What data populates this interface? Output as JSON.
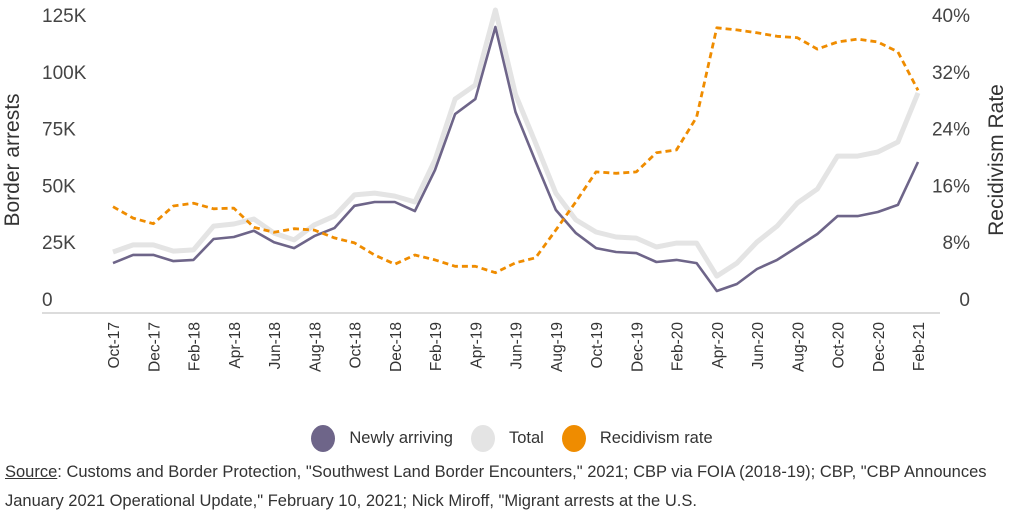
{
  "chart_data": {
    "type": "line",
    "title": "",
    "ylabel_left": "Border arrests",
    "ylabel_right": "Recidivism Rate",
    "ylim_left": [
      0,
      125000
    ],
    "ylim_right": [
      0,
      40
    ],
    "left_ticks": [
      "0",
      "25K",
      "50K",
      "75K",
      "100K",
      "125K"
    ],
    "left_tick_values": [
      0,
      25000,
      50000,
      75000,
      100000,
      125000
    ],
    "right_ticks": [
      "0",
      "8%",
      "16%",
      "24%",
      "32%",
      "40%"
    ],
    "right_tick_values": [
      0,
      8,
      16,
      24,
      32,
      40
    ],
    "grid": false,
    "legend_position": "bottom",
    "categories": [
      "Oct-17",
      "Nov-17",
      "Dec-17",
      "Jan-18",
      "Feb-18",
      "Mar-18",
      "Apr-18",
      "May-18",
      "Jun-18",
      "Jul-18",
      "Aug-18",
      "Sep-18",
      "Oct-18",
      "Nov-18",
      "Dec-18",
      "Jan-19",
      "Feb-19",
      "Mar-19",
      "Apr-19",
      "May-19",
      "Jun-19",
      "Jul-19",
      "Aug-19",
      "Sep-19",
      "Oct-19",
      "Nov-19",
      "Dec-19",
      "Jan-20",
      "Feb-20",
      "Mar-20",
      "Apr-20",
      "May-20",
      "Jun-20",
      "Jul-20",
      "Aug-20",
      "Sep-20",
      "Oct-20",
      "Nov-20",
      "Dec-20",
      "Jan-21",
      "Feb-21"
    ],
    "series": [
      {
        "name": "Newly arriving",
        "axis": "left",
        "color": "#6e6589",
        "style": "solid",
        "values": [
          15800,
          19400,
          19400,
          16700,
          17200,
          26400,
          27300,
          30000,
          25000,
          22400,
          27700,
          31200,
          41000,
          42700,
          42700,
          38700,
          56800,
          81400,
          88000,
          119700,
          82300,
          60500,
          39200,
          29000,
          22400,
          20700,
          20200,
          16300,
          17200,
          15800,
          3500,
          6600,
          13200,
          17200,
          22900,
          28600,
          36500,
          36500,
          38300,
          41400,
          60300
        ]
      },
      {
        "name": "Total",
        "axis": "left",
        "color": "#e4e4e4",
        "style": "solid",
        "values": [
          20700,
          23800,
          23800,
          21100,
          21600,
          32100,
          33000,
          35200,
          29000,
          26000,
          32600,
          36500,
          45800,
          46600,
          45300,
          42700,
          61200,
          88000,
          94200,
          127200,
          90000,
          68600,
          46600,
          34800,
          29500,
          27300,
          26800,
          22900,
          24600,
          24600,
          10100,
          15800,
          25100,
          32100,
          42200,
          48400,
          62900,
          62900,
          64700,
          69100,
          90700
        ]
      },
      {
        "name": "Recidivism rate",
        "axis": "right",
        "color": "#ef8c00",
        "style": "dashed",
        "values": [
          13.0,
          11.4,
          10.6,
          13.1,
          13.5,
          12.7,
          12.8,
          10.1,
          9.4,
          9.9,
          9.7,
          8.6,
          7.9,
          6.2,
          4.9,
          6.2,
          5.5,
          4.6,
          4.6,
          3.7,
          5.1,
          5.8,
          9.7,
          13.7,
          17.9,
          17.7,
          17.9,
          20.6,
          21.0,
          25.6,
          38.2,
          37.9,
          37.5,
          37.0,
          36.8,
          35.2,
          36.2,
          36.6,
          36.2,
          34.8,
          29.4
        ]
      }
    ]
  },
  "legend": {
    "items": [
      {
        "label": "Newly arriving",
        "color": "#6e6589"
      },
      {
        "label": "Total",
        "color": "#e4e4e4"
      },
      {
        "label": "Recidivism rate",
        "color": "#ef8c00"
      }
    ]
  },
  "source": {
    "label": "Source",
    "text": ": Customs and Border Protection, \"Southwest Land Border Encounters,\" 2021; CBP via FOIA (2018-19); CBP, \"CBP Announces January 2021 Operational Update,\" February 10, 2021; Nick Miroff, \"Migrant arrests at the U.S."
  }
}
